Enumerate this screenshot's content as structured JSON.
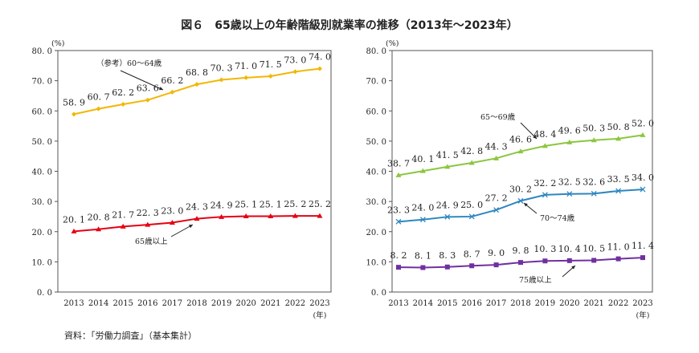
{
  "title": "図６　65歳以上の年齢階級別就業率の推移（2013年～2023年）",
  "source": "資料：「労働力調査」（基本集計）",
  "chart_data": [
    {
      "type": "line",
      "ylabel": "(%)",
      "xlabel": "(年)",
      "ylim": [
        0,
        80
      ],
      "yticks": [
        "0.0",
        "10.0",
        "20.0",
        "30.0",
        "40.0",
        "50.0",
        "60.0",
        "70.0",
        "80.0"
      ],
      "categories": [
        "2013",
        "2014",
        "2015",
        "2016",
        "2017",
        "2018",
        "2019",
        "2020",
        "2021",
        "2022",
        "2023"
      ],
      "grid": false,
      "series": [
        {
          "name": "（参考）60～64歳",
          "color": "#f2b705",
          "marker": "diamond",
          "values": [
            58.9,
            60.7,
            62.2,
            63.6,
            66.2,
            68.8,
            70.3,
            71.0,
            71.5,
            73.0,
            74.0
          ],
          "labels": [
            "58.9",
            "60.7",
            "62.2",
            "63.6",
            "66.2",
            "68.8",
            "70.3",
            "71.0",
            "71.5",
            "73.0",
            "74.0"
          ]
        },
        {
          "name": "65歳以上",
          "color": "#e60012",
          "marker": "triangle",
          "values": [
            20.1,
            20.8,
            21.7,
            22.3,
            23.0,
            24.3,
            24.9,
            25.1,
            25.1,
            25.2,
            25.2
          ],
          "labels": [
            "20.1",
            "20.8",
            "21.7",
            "22.3",
            "23.0",
            "24.3",
            "24.9",
            "25.1",
            "25.1",
            "25.2",
            "25.2"
          ]
        }
      ]
    },
    {
      "type": "line",
      "ylabel": "(%)",
      "xlabel": "(年)",
      "ylim": [
        0,
        80
      ],
      "yticks": [
        "0.0",
        "10.0",
        "20.0",
        "30.0",
        "40.0",
        "50.0",
        "60.0",
        "70.0",
        "80.0"
      ],
      "categories": [
        "2013",
        "2014",
        "2015",
        "2016",
        "2017",
        "2018",
        "2019",
        "2020",
        "2021",
        "2022",
        "2023"
      ],
      "grid": false,
      "series": [
        {
          "name": "65～69歳",
          "color": "#8cc63f",
          "marker": "triangle",
          "values": [
            38.7,
            40.1,
            41.5,
            42.8,
            44.3,
            46.6,
            48.4,
            49.6,
            50.3,
            50.8,
            52.0
          ],
          "labels": [
            "38.7",
            "40.1",
            "41.5",
            "42.8",
            "44.3",
            "46.6",
            "48.4",
            "49.6",
            "50.3",
            "50.8",
            "52.0"
          ]
        },
        {
          "name": "70～74歳",
          "color": "#2e86c1",
          "marker": "x",
          "values": [
            23.3,
            24.0,
            24.9,
            25.0,
            27.2,
            30.2,
            32.2,
            32.5,
            32.6,
            33.5,
            34.0
          ],
          "labels": [
            "23.3",
            "24.0",
            "24.9",
            "25.0",
            "27.2",
            "30.2",
            "32.2",
            "32.5",
            "32.6",
            "33.5",
            "34.0"
          ]
        },
        {
          "name": "75歳以上",
          "color": "#7030a0",
          "marker": "square",
          "values": [
            8.2,
            8.1,
            8.3,
            8.7,
            9.0,
            9.8,
            10.3,
            10.4,
            10.5,
            11.0,
            11.4
          ],
          "labels": [
            "8.2",
            "8.1",
            "8.3",
            "8.7",
            "9.0",
            "9.8",
            "10.3",
            "10.4",
            "10.5",
            "11.0",
            "11.4"
          ]
        }
      ]
    }
  ]
}
